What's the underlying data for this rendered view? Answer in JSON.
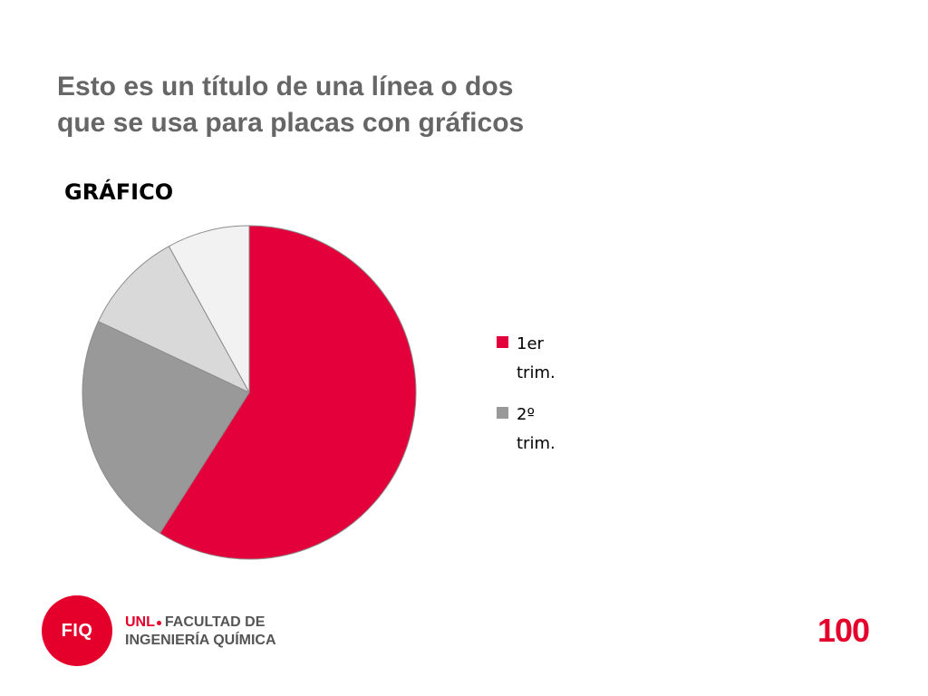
{
  "slide": {
    "title_lines": [
      "Esto es un título de una línea o dos",
      "que se usa para placas con gráficos"
    ]
  },
  "chart_data": {
    "type": "pie",
    "title": "GRÁFICO",
    "legend_position": "right",
    "series": [
      {
        "name": "1er trim.",
        "value": 59,
        "color": "#e4003a"
      },
      {
        "name": "2º trim.",
        "value": 23,
        "color": "#999999"
      },
      {
        "name": "",
        "value": 10,
        "color": "#d9d9d9"
      },
      {
        "name": "",
        "value": 8,
        "color": "#f2f2f2"
      }
    ],
    "start_angle_deg": 0,
    "direction": "clockwise"
  },
  "legend": {
    "items": [
      {
        "label": "1er trim.",
        "color": "#e4003a"
      },
      {
        "label": "2º trim.",
        "color": "#999999"
      }
    ]
  },
  "footer": {
    "logo_text": "FIQ",
    "unl_label": "UNL",
    "line1": "FACULTAD DE",
    "line2": "INGENIERÍA QUÍMICA",
    "centenary": "100",
    "brand_color": "#e4002b",
    "logo_icon": "fiq-circle-logo"
  }
}
